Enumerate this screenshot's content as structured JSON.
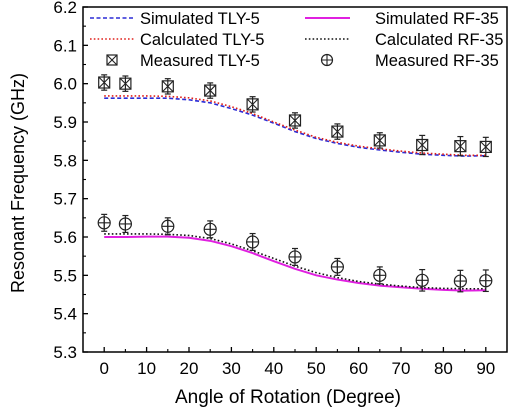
{
  "chart_data": {
    "type": "line",
    "xlabel": "Angle of Rotation (Degree)",
    "ylabel": "Resonant Frequency (GHz)",
    "xlim": [
      -5,
      95
    ],
    "ylim": [
      5.3,
      6.2
    ],
    "xticks": [
      "0",
      "10",
      "20",
      "30",
      "40",
      "50",
      "60",
      "70",
      "80",
      "90"
    ],
    "yticks": [
      "5.3",
      "5.4",
      "5.5",
      "5.6",
      "5.7",
      "5.8",
      "5.9",
      "6.0",
      "6.1",
      "6.2"
    ],
    "grid": false,
    "legend_position": "top",
    "series": [
      {
        "name": "Simulated  TLY-5",
        "kind": "line",
        "style": "dashed",
        "color": "#2b2bd6",
        "x": [
          0,
          5,
          10,
          15,
          20,
          25,
          30,
          35,
          40,
          45,
          50,
          55,
          60,
          65,
          70,
          75,
          80,
          85,
          90
        ],
        "y": [
          5.962,
          5.962,
          5.962,
          5.962,
          5.958,
          5.95,
          5.935,
          5.918,
          5.897,
          5.875,
          5.857,
          5.844,
          5.834,
          5.827,
          5.821,
          5.816,
          5.813,
          5.811,
          5.812
        ]
      },
      {
        "name": "Calculated  TLY-5",
        "kind": "line",
        "style": "dotted",
        "color": "#e0201b",
        "x": [
          0,
          5,
          10,
          15,
          20,
          25,
          30,
          35,
          40,
          45,
          50,
          55,
          60,
          65,
          70,
          75,
          80,
          85,
          90
        ],
        "y": [
          5.968,
          5.968,
          5.968,
          5.967,
          5.963,
          5.955,
          5.94,
          5.922,
          5.9,
          5.879,
          5.86,
          5.847,
          5.837,
          5.83,
          5.824,
          5.819,
          5.816,
          5.813,
          5.813
        ]
      },
      {
        "name": "Measured  TLY-5",
        "kind": "scatter",
        "marker": "boxed-x",
        "color": "#333333",
        "x": [
          0,
          5,
          15,
          25,
          35,
          45,
          55,
          65,
          75,
          84,
          90
        ],
        "y": [
          6.003,
          6.0,
          5.993,
          5.982,
          5.946,
          5.904,
          5.875,
          5.852,
          5.84,
          5.837,
          5.835
        ],
        "error": [
          0.02,
          0.02,
          0.02,
          0.02,
          0.02,
          0.02,
          0.02,
          0.02,
          0.025,
          0.025,
          0.025
        ]
      },
      {
        "name": "Simulated  RF-35",
        "kind": "line",
        "style": "solid",
        "color": "#e020e0",
        "x": [
          0,
          5,
          10,
          15,
          20,
          25,
          30,
          35,
          40,
          45,
          50,
          55,
          60,
          65,
          70,
          75,
          80,
          85,
          90
        ],
        "y": [
          5.6,
          5.6,
          5.601,
          5.601,
          5.598,
          5.59,
          5.576,
          5.558,
          5.537,
          5.517,
          5.5,
          5.489,
          5.48,
          5.473,
          5.469,
          5.465,
          5.462,
          5.46,
          5.461
        ]
      },
      {
        "name": "Calculated  RF-35",
        "kind": "line",
        "style": "dotted",
        "color": "#111111",
        "x": [
          0,
          5,
          10,
          15,
          20,
          25,
          30,
          35,
          40,
          45,
          50,
          55,
          60,
          65,
          70,
          75,
          80,
          85,
          90
        ],
        "y": [
          5.608,
          5.608,
          5.608,
          5.607,
          5.604,
          5.596,
          5.582,
          5.564,
          5.544,
          5.524,
          5.507,
          5.494,
          5.484,
          5.477,
          5.472,
          5.468,
          5.466,
          5.465,
          5.465
        ]
      },
      {
        "name": "Measured  RF-35",
        "kind": "scatter",
        "marker": "circle-plus",
        "color": "#333333",
        "x": [
          0,
          5,
          15,
          25,
          35,
          45,
          55,
          65,
          75,
          84,
          90
        ],
        "y": [
          5.637,
          5.634,
          5.628,
          5.62,
          5.587,
          5.548,
          5.522,
          5.5,
          5.487,
          5.485,
          5.486
        ],
        "error": [
          0.022,
          0.022,
          0.022,
          0.022,
          0.022,
          0.022,
          0.022,
          0.022,
          0.028,
          0.028,
          0.028
        ]
      }
    ]
  }
}
